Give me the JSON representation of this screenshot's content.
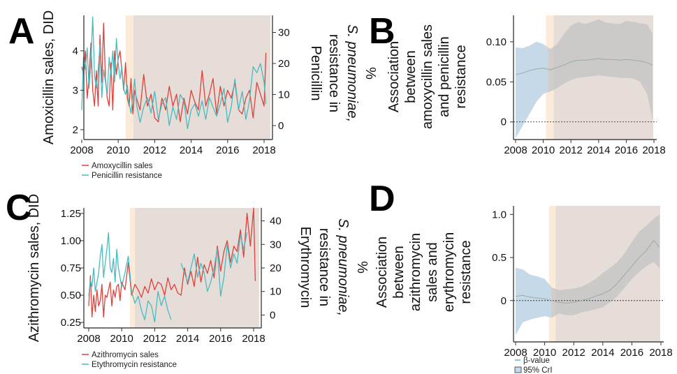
{
  "chart_data": [
    {
      "panel": "A",
      "type": "line",
      "ylabel": "Amoxicillin sales, DID",
      "y2label_lines": [
        "Penicillin",
        "resistance in",
        "S. pneumoniae,",
        "%"
      ],
      "x_ticks": [
        "2008",
        "2010",
        "2012",
        "2014",
        "2016",
        "2018"
      ],
      "xlim": [
        2008,
        2018
      ],
      "ylim": [
        1.75,
        4.9
      ],
      "y_ticks": [
        "2",
        "3",
        "4"
      ],
      "y2lim": [
        -4.5,
        35.5
      ],
      "y2_ticks": [
        "0",
        "10",
        "20",
        "30"
      ],
      "shade_light": [
        2010.4,
        2010.83
      ],
      "shade_dark": [
        2010.83,
        2018.35
      ],
      "series": [
        {
          "name": "Amoxicillin sales",
          "color": "#e0403a",
          "axis": "left",
          "x": [
            2008.0,
            2008.1,
            2008.2,
            2008.3,
            2008.4,
            2008.5,
            2008.6,
            2008.7,
            2008.8,
            2008.9,
            2009.0,
            2009.1,
            2009.2,
            2009.3,
            2009.4,
            2009.5,
            2009.6,
            2009.7,
            2009.8,
            2009.9,
            2010.0,
            2010.1,
            2010.2,
            2010.3,
            2010.4,
            2010.5,
            2010.6,
            2010.7,
            2010.8,
            2010.9,
            2011.0,
            2011.2,
            2011.4,
            2011.6,
            2011.8,
            2012.0,
            2012.2,
            2012.4,
            2012.6,
            2012.8,
            2013.0,
            2013.2,
            2013.4,
            2013.6,
            2013.8,
            2014.0,
            2014.2,
            2014.4,
            2014.6,
            2014.8,
            2015.0,
            2015.2,
            2015.4,
            2015.6,
            2015.8,
            2016.0,
            2016.2,
            2016.4,
            2016.6,
            2016.8,
            2017.0,
            2017.2,
            2017.4,
            2017.6,
            2017.8,
            2018.0,
            2018.1
          ],
          "y": [
            3.6,
            3.4,
            4.0,
            2.8,
            3.3,
            4.2,
            3.0,
            2.6,
            3.5,
            2.6,
            4.4,
            3.2,
            4.7,
            3.3,
            2.8,
            2.6,
            3.7,
            2.5,
            4.0,
            3.4,
            3.8,
            4.0,
            3.5,
            3.0,
            3.7,
            2.8,
            2.6,
            3.3,
            2.4,
            3.0,
            2.8,
            2.5,
            3.4,
            2.6,
            2.9,
            2.3,
            2.2,
            2.8,
            2.5,
            3.1,
            2.6,
            2.9,
            2.2,
            2.8,
            2.4,
            3.0,
            2.7,
            2.5,
            3.5,
            2.6,
            2.9,
            3.3,
            2.4,
            3.1,
            2.6,
            3.0,
            2.8,
            3.2,
            2.5,
            2.4,
            2.8,
            3.0,
            2.3,
            3.2,
            2.9,
            2.6,
            3.95
          ]
        },
        {
          "name": "Penicillin resistance",
          "color": "#45bcc0",
          "axis": "right",
          "x": [
            2008.0,
            2008.1,
            2008.2,
            2008.3,
            2008.4,
            2008.5,
            2008.6,
            2008.7,
            2008.8,
            2008.9,
            2009.0,
            2009.1,
            2009.2,
            2009.3,
            2009.4,
            2009.5,
            2009.6,
            2009.7,
            2009.8,
            2009.9,
            2010.0,
            2010.1,
            2010.2,
            2010.3,
            2010.4,
            2010.5,
            2010.6,
            2010.7,
            2010.8,
            2010.9,
            2011.0,
            2011.2,
            2011.4,
            2011.6,
            2011.8,
            2012.0,
            2012.2,
            2012.4,
            2012.6,
            2012.8,
            2013.0,
            2013.2,
            2013.4,
            2013.6,
            2013.8,
            2014.0,
            2014.2,
            2014.4,
            2014.6,
            2014.8,
            2015.0,
            2015.2,
            2015.4,
            2015.6,
            2015.8,
            2016.0,
            2016.2,
            2016.4,
            2016.6,
            2016.8,
            2017.0,
            2017.2,
            2017.4,
            2017.6,
            2017.8,
            2018.0,
            2018.1
          ],
          "y": [
            5,
            22,
            18,
            25,
            12,
            20,
            35,
            16,
            12,
            18,
            26,
            9,
            18,
            14,
            10,
            22,
            16,
            24,
            14,
            28,
            20,
            15,
            19,
            12,
            10,
            13,
            7,
            4,
            9,
            15,
            7,
            1,
            6,
            9,
            4,
            11,
            2,
            7,
            9,
            0,
            6,
            2,
            10,
            8,
            -1,
            5,
            7,
            3,
            8,
            2,
            9,
            6,
            3,
            7,
            12,
            1,
            6,
            15,
            5,
            11,
            2,
            8,
            19,
            17,
            20,
            14,
            7
          ]
        }
      ],
      "legend": [
        "Amoxycillin sales",
        "Penicillin resistance"
      ]
    },
    {
      "panel": "B",
      "type": "area",
      "ylabel_lines": [
        "Association",
        "between",
        "amoxycillin sales",
        "and penicillin",
        "resistance"
      ],
      "x_ticks": [
        "2008",
        "2010",
        "2012",
        "2014",
        "2016",
        "2018"
      ],
      "xlim": [
        2008,
        2018
      ],
      "ylim": [
        -0.022,
        0.133
      ],
      "y_ticks": [
        "0",
        "0.05",
        "0.10"
      ],
      "shade_light": [
        2010.2,
        2010.75
      ],
      "shade_dark": [
        2010.75,
        2017.95
      ],
      "x": [
        2008.0,
        2008.5,
        2009.0,
        2009.5,
        2010.0,
        2010.5,
        2011.0,
        2011.5,
        2012.0,
        2012.5,
        2013.0,
        2013.5,
        2014.0,
        2014.5,
        2015.0,
        2015.5,
        2016.0,
        2016.5,
        2017.0,
        2017.5,
        2017.9
      ],
      "beta": [
        0.059,
        0.061,
        0.064,
        0.066,
        0.067,
        0.065,
        0.068,
        0.071,
        0.075,
        0.077,
        0.077,
        0.078,
        0.079,
        0.078,
        0.078,
        0.077,
        0.078,
        0.077,
        0.076,
        0.074,
        0.071
      ],
      "lower": [
        -0.02,
        -0.005,
        0.01,
        0.025,
        0.035,
        0.038,
        0.042,
        0.048,
        0.052,
        0.055,
        0.056,
        0.057,
        0.058,
        0.057,
        0.056,
        0.055,
        0.055,
        0.054,
        0.05,
        0.035,
        0.003
      ],
      "upper": [
        0.093,
        0.092,
        0.095,
        0.1,
        0.097,
        0.091,
        0.097,
        0.11,
        0.12,
        0.125,
        0.122,
        0.125,
        0.128,
        0.124,
        0.123,
        0.122,
        0.126,
        0.125,
        0.123,
        0.122,
        0.11
      ]
    },
    {
      "panel": "C",
      "type": "line",
      "ylabel": "Azithromycin sales, DID",
      "y2label_lines": [
        "Erythromycin",
        "resistance in",
        "S. pneumoniae,",
        "%"
      ],
      "x_ticks": [
        "2008",
        "2010",
        "2012",
        "2014",
        "2016",
        "2018"
      ],
      "xlim": [
        2008,
        2018
      ],
      "ylim": [
        0.2,
        1.3
      ],
      "y_ticks": [
        "0.25",
        "0.50",
        "0.75",
        "1.00",
        "1.25"
      ],
      "y2lim": [
        -5.5,
        45.5
      ],
      "y2_ticks": [
        "0",
        "10",
        "20",
        "30",
        "40"
      ],
      "shade_light": [
        2010.5,
        2010.8
      ],
      "shade_dark": [
        2010.8,
        2018.35
      ],
      "series": [
        {
          "name": "Azithromycin sales",
          "color": "#e0403a",
          "axis": "left",
          "x": [
            2008.0,
            2008.1,
            2008.2,
            2008.3,
            2008.4,
            2008.5,
            2008.6,
            2008.7,
            2008.8,
            2008.9,
            2009.0,
            2009.1,
            2009.2,
            2009.3,
            2009.4,
            2009.5,
            2009.6,
            2009.7,
            2009.8,
            2009.9,
            2010.0,
            2010.2,
            2010.4,
            2010.6,
            2010.8,
            2011.0,
            2011.2,
            2011.4,
            2011.6,
            2011.8,
            2012.0,
            2012.2,
            2012.4,
            2012.6,
            2012.8,
            2013.0,
            2013.2,
            2013.4,
            2013.6,
            2013.8,
            2014.0,
            2014.2,
            2014.4,
            2014.6,
            2014.8,
            2015.0,
            2015.2,
            2015.4,
            2015.6,
            2015.8,
            2016.0,
            2016.2,
            2016.4,
            2016.6,
            2016.8,
            2017.0,
            2017.2,
            2017.4,
            2017.6,
            2017.8,
            2018.0,
            2018.1
          ],
          "y": [
            0.4,
            0.68,
            0.3,
            0.5,
            0.35,
            0.55,
            0.4,
            0.45,
            0.6,
            0.3,
            0.5,
            0.48,
            0.55,
            0.62,
            0.4,
            0.55,
            0.48,
            0.58,
            0.6,
            0.45,
            0.62,
            0.55,
            0.8,
            0.5,
            0.6,
            0.55,
            0.48,
            0.58,
            0.52,
            0.65,
            0.55,
            0.62,
            0.6,
            0.5,
            0.66,
            0.55,
            0.6,
            0.52,
            0.5,
            0.75,
            0.6,
            0.72,
            0.58,
            0.85,
            0.62,
            0.78,
            0.7,
            0.82,
            0.66,
            0.95,
            0.72,
            0.9,
            1.0,
            0.8,
            0.95,
            0.9,
            1.1,
            0.85,
            1.25,
            0.95,
            1.3,
            0.63
          ]
        },
        {
          "name": "Etythromycin resistance",
          "color": "#45bcc0",
          "axis": "right",
          "x": [
            2008.0,
            2008.1,
            2008.2,
            2008.3,
            2008.4,
            2008.5,
            2008.6,
            2008.7,
            2008.8,
            2008.9,
            2009.0,
            2009.1,
            2009.2,
            2009.3,
            2009.4,
            2009.5,
            2009.6,
            2009.7,
            2009.8,
            2009.9,
            2010.0,
            2010.2,
            2010.4,
            2010.6,
            2010.8,
            2011.0,
            2011.2,
            2011.4,
            2011.6,
            2011.8,
            2012.0,
            2012.2,
            2012.4,
            2012.6,
            2012.8,
            2013.0,
            null,
            2013.6,
            2013.8,
            2014.0,
            2014.2,
            2014.4,
            2014.6,
            2014.8,
            2015.0,
            2015.2,
            2015.4,
            2015.6,
            2015.8,
            2016.0,
            2016.2,
            2016.4,
            2016.6,
            2016.8,
            2017.0,
            2017.2,
            2017.4,
            2017.6
          ],
          "y": [
            8,
            15,
            12,
            20,
            10,
            14,
            18,
            25,
            30,
            16,
            22,
            28,
            35,
            20,
            18,
            24,
            14,
            28,
            20,
            16,
            12,
            18,
            25,
            10,
            5,
            8,
            2,
            -2,
            6,
            4,
            -3,
            10,
            4,
            8,
            2,
            -2,
            null,
            22,
            18,
            14,
            20,
            26,
            16,
            22,
            18,
            10,
            14,
            20,
            28,
            8,
            16,
            30,
            20,
            26,
            22,
            34,
            28,
            35
          ]
        }
      ],
      "legend": [
        "Azithromycin sales",
        "Etythromycin resistance"
      ]
    },
    {
      "panel": "D",
      "type": "area",
      "ylabel_lines": [
        "Association",
        "between",
        "azithromycin",
        "sales and",
        "erythromycin",
        "resistance"
      ],
      "x_ticks": [
        "2008",
        "2010",
        "2012",
        "2014",
        "2016",
        "2018"
      ],
      "xlim": [
        2008,
        2018
      ],
      "ylim": [
        -0.48,
        1.1
      ],
      "y_ticks": [
        "0",
        "0.5",
        "1.0"
      ],
      "shade_light": [
        2010.3,
        2010.75
      ],
      "shade_dark": [
        2010.75,
        2017.95
      ],
      "x": [
        2008.0,
        2008.5,
        2009.0,
        2009.5,
        2010.0,
        2010.5,
        2011.0,
        2011.5,
        2012.0,
        2012.5,
        2013.0,
        2013.5,
        2014.0,
        2014.5,
        2015.0,
        2015.5,
        2016.0,
        2016.5,
        2017.0,
        2017.5,
        2017.9
      ],
      "beta": [
        0.05,
        0.06,
        0.04,
        0.03,
        0.02,
        0.0,
        -0.02,
        -0.03,
        -0.02,
        0.0,
        0.02,
        0.05,
        0.08,
        0.12,
        0.2,
        0.3,
        0.4,
        0.5,
        0.58,
        0.7,
        0.62
      ],
      "lower": [
        -0.4,
        -0.25,
        -0.22,
        -0.2,
        -0.18,
        -0.2,
        -0.15,
        -0.17,
        -0.17,
        -0.14,
        -0.12,
        -0.1,
        -0.08,
        -0.02,
        0.05,
        0.15,
        0.25,
        0.33,
        0.4,
        0.45,
        0.38
      ],
      "upper": [
        0.38,
        0.36,
        0.3,
        0.28,
        0.25,
        0.15,
        0.12,
        0.13,
        0.14,
        0.16,
        0.2,
        0.25,
        0.32,
        0.38,
        0.45,
        0.55,
        0.68,
        0.8,
        0.87,
        0.95,
        1.0
      ]
    }
  ],
  "legend_b": [
    "β-value",
    "95% CrI"
  ],
  "colors": {
    "red": "#e0403a",
    "teal": "#45bcc0",
    "shade_light": "#fcebd8",
    "shade_dark": "#e6ddd8",
    "band_blue": "#c5d9e8",
    "band_gray": "#c3c3c3"
  }
}
